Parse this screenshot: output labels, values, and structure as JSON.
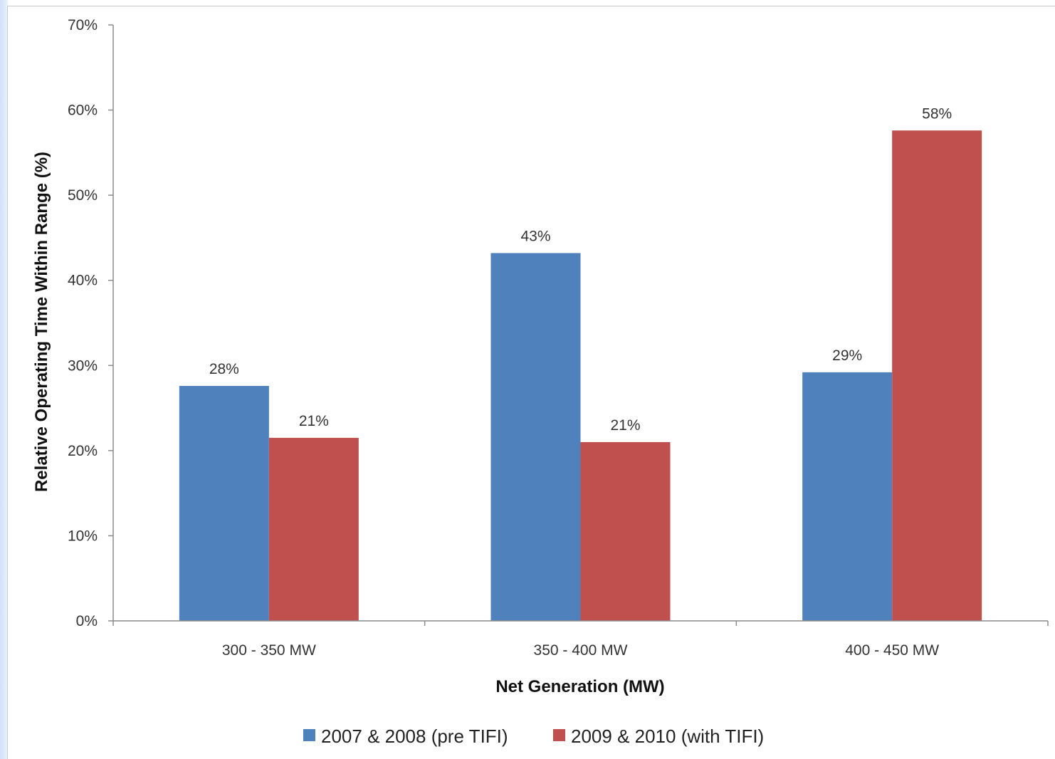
{
  "chart_data": {
    "type": "bar",
    "title": "",
    "xlabel": "Net Generation (MW)",
    "ylabel": "Relative Operating Time Within Range (%)",
    "ylim": [
      0,
      70
    ],
    "yticks": [
      0,
      10,
      20,
      30,
      40,
      50,
      60,
      70
    ],
    "ytick_labels": [
      "0%",
      "10%",
      "20%",
      "30%",
      "40%",
      "50%",
      "60%",
      "70%"
    ],
    "categories": [
      "300 - 350 MW",
      "350 - 400 MW",
      "400 - 450 MW"
    ],
    "series": [
      {
        "name": "2007 & 2008 (pre TIFI)",
        "color": "#4f81bd",
        "values": [
          27.6,
          43.2,
          29.2
        ],
        "labels": [
          "28%",
          "43%",
          "29%"
        ]
      },
      {
        "name": "2009 & 2010 (with TIFI)",
        "color": "#c0504d",
        "values": [
          21.5,
          21.0,
          57.6
        ],
        "labels": [
          "21%",
          "21%",
          "58%"
        ]
      }
    ],
    "grid": false,
    "legend_position": "bottom"
  }
}
